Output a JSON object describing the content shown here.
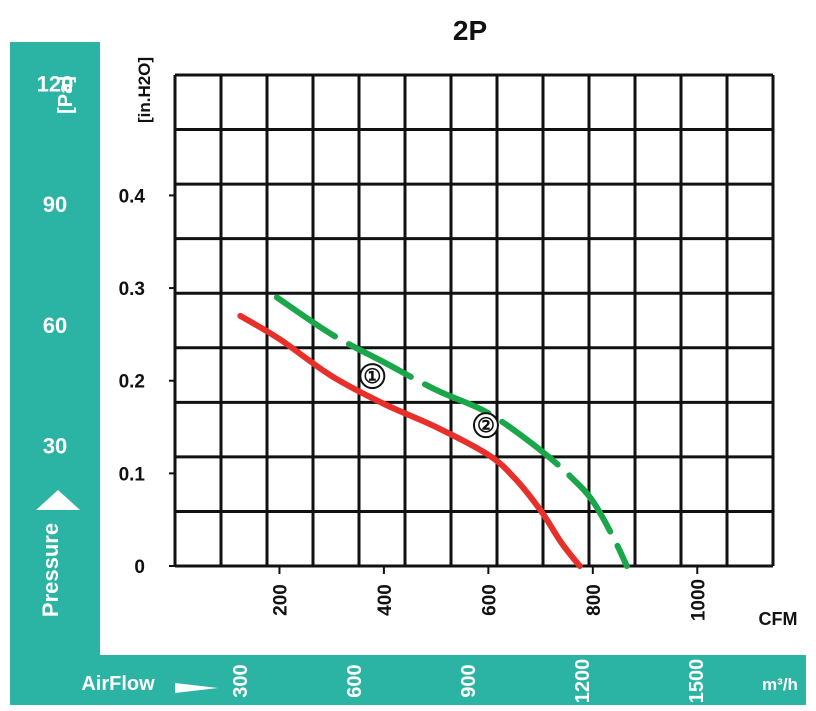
{
  "chart_data": {
    "type": "line",
    "title": "2P",
    "grid": true,
    "xlabel": "CFM",
    "ylabel_inh2o": "[in.H2O]",
    "ylim_inh2o": [
      0,
      0.53
    ],
    "xlim_cfm": [
      0,
      1145
    ],
    "x_ticks": [
      {
        "label": "200",
        "value": 200
      },
      {
        "label": "400",
        "value": 400
      },
      {
        "label": "600",
        "value": 600
      },
      {
        "label": "800",
        "value": 800
      },
      {
        "label": "1000",
        "value": 1000
      }
    ],
    "y_ticks_inh2o": [
      {
        "label": "0",
        "value": 0
      },
      {
        "label": "0.1",
        "value": 0.1
      },
      {
        "label": "0.2",
        "value": 0.2
      },
      {
        "label": "0.3",
        "value": 0.3
      },
      {
        "label": "0.4",
        "value": 0.4
      }
    ],
    "pressure_axis": {
      "label": "Pressure",
      "unit": "[Pa]",
      "ticks": [
        {
          "label": "30",
          "value": 30
        },
        {
          "label": "60",
          "value": 60
        },
        {
          "label": "90",
          "value": 90
        },
        {
          "label": "120",
          "value": 120
        }
      ]
    },
    "airflow_axis": {
      "label": "AirFlow",
      "unit": "m³/h",
      "ticks": [
        {
          "label": "300",
          "value": 300
        },
        {
          "label": "600",
          "value": 600
        },
        {
          "label": "900",
          "value": 900
        },
        {
          "label": "1200",
          "value": 1200
        },
        {
          "label": "1500",
          "value": 1500
        }
      ]
    },
    "series": [
      {
        "name": "①",
        "color": "#e8302a",
        "style": "solid",
        "x": [
          125,
          200,
          300,
          400,
          500,
          600,
          650,
          700,
          740,
          775
        ],
        "y": [
          0.27,
          0.245,
          0.205,
          0.175,
          0.15,
          0.12,
          0.095,
          0.06,
          0.025,
          0
        ]
      },
      {
        "name": "②",
        "color": "#1aa64a",
        "style": "dashed",
        "x": [
          195,
          300,
          400,
          500,
          600,
          700,
          760,
          800,
          840,
          865
        ],
        "y": [
          0.29,
          0.25,
          0.22,
          0.19,
          0.165,
          0.125,
          0.095,
          0.07,
          0.03,
          0
        ]
      }
    ]
  },
  "colors": {
    "band": "#2bb3a3",
    "grid": "#111111"
  }
}
